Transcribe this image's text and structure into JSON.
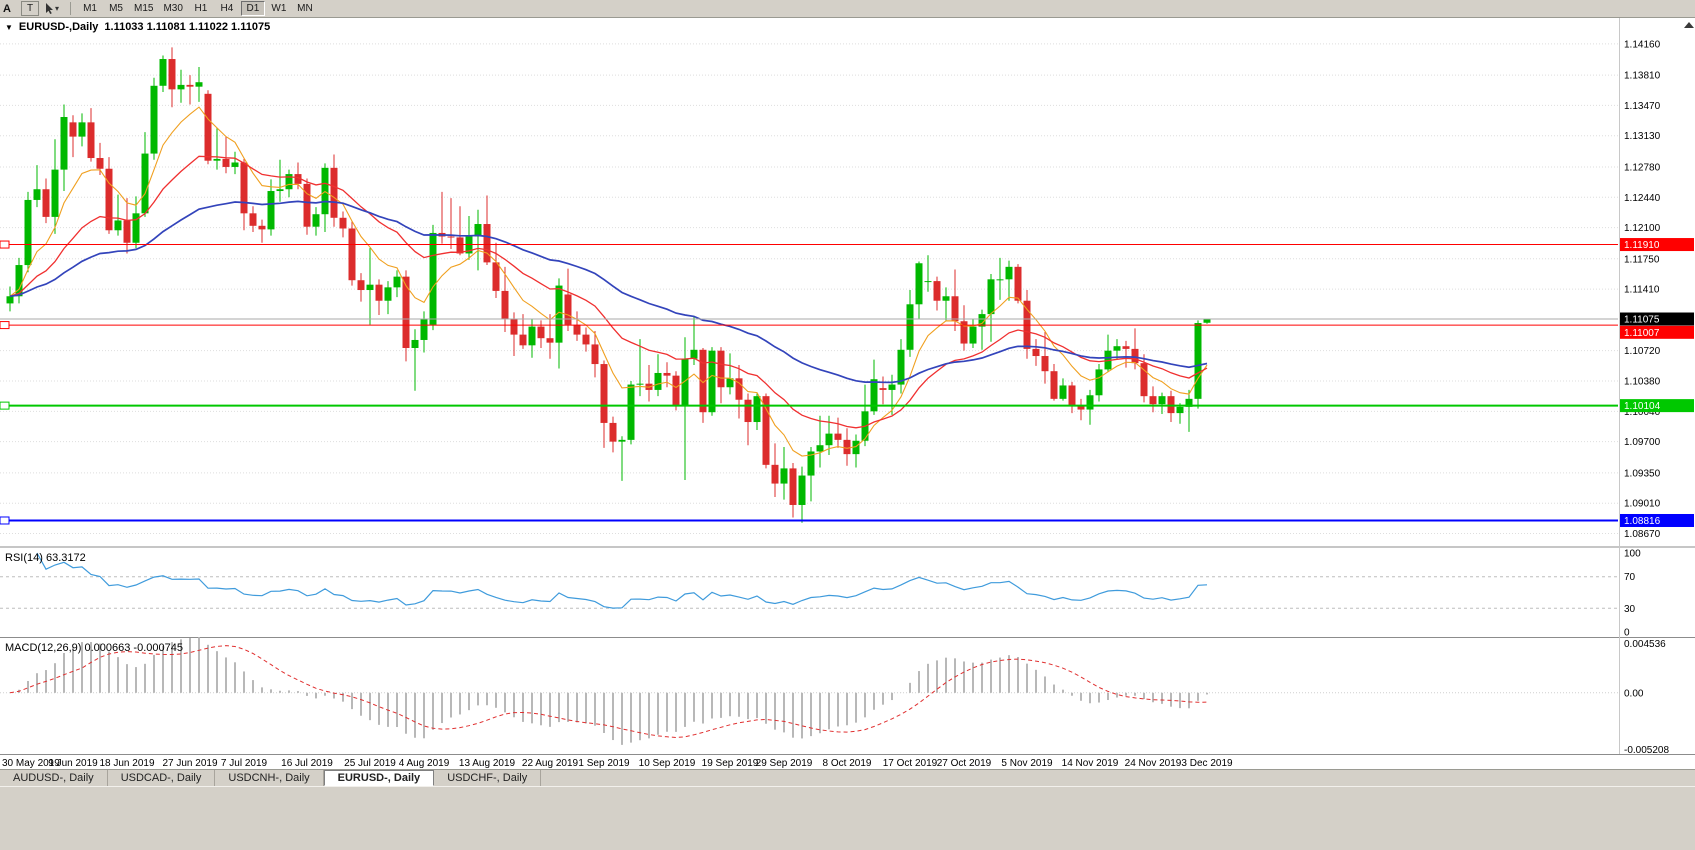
{
  "window": {
    "bg_color": "#d4d0c8"
  },
  "toolbar": {
    "left_label": "A",
    "text_tool_label": "T",
    "timeframes": [
      "M1",
      "M5",
      "M15",
      "M30",
      "H1",
      "H4",
      "D1",
      "W1",
      "MN"
    ],
    "active_timeframe": "D1"
  },
  "chart": {
    "title_symbol": "EURUSD-,Daily",
    "title_ohlc": "1.11033 1.11081 1.11022 1.11075"
  },
  "indicators": {
    "rsi": {
      "title": "RSI(14) 63.3172",
      "period": 14,
      "value": "63.3172",
      "color": "#3f9bdc",
      "level_lines": [
        70,
        30
      ],
      "axis_levels": [
        100,
        70,
        30,
        0
      ]
    },
    "macd": {
      "title": "MACD(12,26,9) 0.000663 -0.000745",
      "fast": 12,
      "slow": 26,
      "signal": 9,
      "values": "0.000663 -0.000745",
      "histogram_color": "#b8b8b8",
      "signal_color": "#e03030",
      "axis_max": 0.004536,
      "axis_min": -0.005208,
      "axis_labels": [
        "0.004536",
        "0.00",
        "-0.005208"
      ]
    }
  },
  "chart_data": {
    "type": "candlestick",
    "symbol": "EURUSD-",
    "timeframe": "Daily",
    "current_bar": {
      "open": 1.11033,
      "high": 1.11081,
      "low": 1.11022,
      "close": 1.11075
    },
    "current_price": {
      "value": 1.11075,
      "label": "1.11075"
    },
    "price_range": {
      "min": 1.0853,
      "max": 1.1445
    },
    "price_axis_ticks": [
      1.1416,
      1.1381,
      1.1347,
      1.1313,
      1.1278,
      1.1244,
      1.121,
      1.1175,
      1.1141,
      1.1072,
      1.1038,
      1.1004,
      1.097,
      1.0935,
      1.0901,
      1.0867
    ],
    "up_color": "#00b800",
    "down_color": "#dc2c2c",
    "horizontal_lines": [
      {
        "price": 1.1191,
        "label": "1.11910",
        "color": "#ff0000",
        "width": 1
      },
      {
        "price": 1.11007,
        "label": "1.11007",
        "color": "#ff0000",
        "width": 1
      },
      {
        "price": 1.10104,
        "label": "1.10104",
        "color": "#00c800",
        "width": 2
      },
      {
        "price": 1.08816,
        "label": "1.08816",
        "color": "#0000ff",
        "width": 2
      }
    ],
    "moving_averages": [
      {
        "name": "fast",
        "period": 8,
        "color": "#f0a020",
        "width": 1.1
      },
      {
        "name": "medium",
        "period": 21,
        "color": "#f03030",
        "width": 1.3
      },
      {
        "name": "slow",
        "period": 48,
        "color": "#3344bb",
        "width": 1.7
      }
    ],
    "date_labels": [
      {
        "index": 0,
        "label": "30 May 2019"
      },
      {
        "index": 7,
        "label": "9 Jun 2019"
      },
      {
        "index": 13,
        "label": "18 Jun 2019"
      },
      {
        "index": 20,
        "label": "27 Jun 2019"
      },
      {
        "index": 26,
        "label": "7 Jul 2019"
      },
      {
        "index": 33,
        "label": "16 Jul 2019"
      },
      {
        "index": 40,
        "label": "25 Jul 2019"
      },
      {
        "index": 46,
        "label": "4 Aug 2019"
      },
      {
        "index": 53,
        "label": "13 Aug 2019"
      },
      {
        "index": 60,
        "label": "22 Aug 2019"
      },
      {
        "index": 66,
        "label": "1 Sep 2019"
      },
      {
        "index": 73,
        "label": "10 Sep 2019"
      },
      {
        "index": 80,
        "label": "19 Sep 2019"
      },
      {
        "index": 86,
        "label": "29 Sep 2019"
      },
      {
        "index": 93,
        "label": "8 Oct 2019"
      },
      {
        "index": 100,
        "label": "17 Oct 2019"
      },
      {
        "index": 106,
        "label": "27 Oct 2019"
      },
      {
        "index": 113,
        "label": "5 Nov 2019"
      },
      {
        "index": 120,
        "label": "14 Nov 2019"
      },
      {
        "index": 127,
        "label": "24 Nov 2019"
      },
      {
        "index": 133,
        "label": "3 Dec 2019"
      }
    ],
    "candles": [
      [
        1.1125,
        1.1144,
        1.1116,
        1.1133
      ],
      [
        1.1133,
        1.1176,
        1.1125,
        1.1168
      ],
      [
        1.1168,
        1.125,
        1.116,
        1.1241
      ],
      [
        1.1241,
        1.128,
        1.1233,
        1.1253
      ],
      [
        1.1253,
        1.1265,
        1.1215,
        1.1222
      ],
      [
        1.1222,
        1.1309,
        1.1203,
        1.1275
      ],
      [
        1.1275,
        1.1348,
        1.1251,
        1.1334
      ],
      [
        1.1328,
        1.1336,
        1.1289,
        1.1312
      ],
      [
        1.1312,
        1.1338,
        1.1301,
        1.1328
      ],
      [
        1.1328,
        1.1344,
        1.1284,
        1.1288
      ],
      [
        1.1288,
        1.1305,
        1.1269,
        1.1276
      ],
      [
        1.1276,
        1.1289,
        1.1203,
        1.1207
      ],
      [
        1.1207,
        1.1247,
        1.1201,
        1.1218
      ],
      [
        1.1218,
        1.1243,
        1.1181,
        1.1193
      ],
      [
        1.1193,
        1.1245,
        1.1187,
        1.1226
      ],
      [
        1.1226,
        1.1317,
        1.1222,
        1.1293
      ],
      [
        1.1293,
        1.1378,
        1.1286,
        1.1369
      ],
      [
        1.1369,
        1.1403,
        1.1362,
        1.1399
      ],
      [
        1.1399,
        1.1412,
        1.1345,
        1.1365
      ],
      [
        1.1365,
        1.1387,
        1.135,
        1.137
      ],
      [
        1.137,
        1.1381,
        1.1348,
        1.1368
      ],
      [
        1.1368,
        1.139,
        1.1351,
        1.1373
      ],
      [
        1.136,
        1.1364,
        1.1281,
        1.1285
      ],
      [
        1.1285,
        1.1322,
        1.1275,
        1.1287
      ],
      [
        1.1287,
        1.1312,
        1.1271,
        1.1278
      ],
      [
        1.1278,
        1.1295,
        1.127,
        1.1283
      ],
      [
        1.1283,
        1.1287,
        1.1207,
        1.1226
      ],
      [
        1.1226,
        1.1234,
        1.1205,
        1.1212
      ],
      [
        1.1212,
        1.1219,
        1.1193,
        1.1208
      ],
      [
        1.1208,
        1.1264,
        1.1201,
        1.1251
      ],
      [
        1.1251,
        1.1286,
        1.1239,
        1.1253
      ],
      [
        1.1253,
        1.1275,
        1.1244,
        1.127
      ],
      [
        1.127,
        1.1283,
        1.1253,
        1.1259
      ],
      [
        1.1259,
        1.1265,
        1.1202,
        1.1211
      ],
      [
        1.1211,
        1.1233,
        1.1201,
        1.1225
      ],
      [
        1.1225,
        1.1282,
        1.1205,
        1.1277
      ],
      [
        1.1277,
        1.1292,
        1.1211,
        1.1221
      ],
      [
        1.1221,
        1.1228,
        1.1199,
        1.1209
      ],
      [
        1.1209,
        1.1217,
        1.1145,
        1.1151
      ],
      [
        1.1151,
        1.1159,
        1.1127,
        1.114
      ],
      [
        1.114,
        1.1187,
        1.1101,
        1.1146
      ],
      [
        1.1146,
        1.1152,
        1.1112,
        1.1128
      ],
      [
        1.1128,
        1.115,
        1.1113,
        1.1143
      ],
      [
        1.1143,
        1.1162,
        1.1132,
        1.1155
      ],
      [
        1.1155,
        1.1162,
        1.106,
        1.1075
      ],
      [
        1.1075,
        1.1096,
        1.1027,
        1.1084
      ],
      [
        1.1084,
        1.1116,
        1.107,
        1.1108
      ],
      [
        1.1101,
        1.1213,
        1.1095,
        1.1204
      ],
      [
        1.1204,
        1.125,
        1.1192,
        1.12
      ],
      [
        1.12,
        1.1243,
        1.1186,
        1.1199
      ],
      [
        1.1199,
        1.1234,
        1.1179,
        1.1181
      ],
      [
        1.1181,
        1.1223,
        1.1174,
        1.12
      ],
      [
        1.12,
        1.123,
        1.1162,
        1.1214
      ],
      [
        1.1214,
        1.1246,
        1.1168,
        1.1171
      ],
      [
        1.1171,
        1.1193,
        1.1131,
        1.1139
      ],
      [
        1.1139,
        1.1166,
        1.1093,
        1.1108
      ],
      [
        1.1108,
        1.1115,
        1.1066,
        1.109
      ],
      [
        1.109,
        1.1113,
        1.1074,
        1.1078
      ],
      [
        1.1078,
        1.1107,
        1.1064,
        1.1099
      ],
      [
        1.1099,
        1.1106,
        1.1075,
        1.1086
      ],
      [
        1.1086,
        1.1113,
        1.1063,
        1.1081
      ],
      [
        1.1081,
        1.1153,
        1.1052,
        1.1145
      ],
      [
        1.1135,
        1.1164,
        1.1094,
        1.1101
      ],
      [
        1.1101,
        1.1116,
        1.1083,
        1.109
      ],
      [
        1.109,
        1.1098,
        1.1071,
        1.1079
      ],
      [
        1.1079,
        1.1094,
        1.1042,
        1.1057
      ],
      [
        1.1057,
        1.1061,
        1.0963,
        1.0991
      ],
      [
        1.0991,
        1.0998,
        1.0958,
        1.097
      ],
      [
        1.097,
        1.0976,
        1.0926,
        1.0972
      ],
      [
        1.0972,
        1.1038,
        1.0967,
        1.1034
      ],
      [
        1.1034,
        1.1085,
        1.1021,
        1.1035
      ],
      [
        1.1035,
        1.1056,
        1.1015,
        1.1028
      ],
      [
        1.1028,
        1.1068,
        1.1021,
        1.1047
      ],
      [
        1.1047,
        1.1059,
        1.1031,
        1.1044
      ],
      [
        1.1044,
        1.1049,
        1.1005,
        1.101
      ],
      [
        1.101,
        1.1087,
        1.0927,
        1.1063
      ],
      [
        1.1063,
        1.111,
        1.1056,
        1.1073
      ],
      [
        1.1073,
        1.1075,
        1.0991,
        1.1003
      ],
      [
        1.1003,
        1.1076,
        1.0999,
        1.1072
      ],
      [
        1.1072,
        1.1076,
        1.1013,
        1.1031
      ],
      [
        1.1031,
        1.1069,
        1.1023,
        1.1041
      ],
      [
        1.1041,
        1.1056,
        1.0996,
        1.1017
      ],
      [
        1.1017,
        1.1024,
        1.0966,
        1.0992
      ],
      [
        1.0992,
        1.1024,
        1.0983,
        1.1021
      ],
      [
        1.1021,
        1.1024,
        1.094,
        1.0944
      ],
      [
        1.0944,
        1.0968,
        1.0908,
        1.0923
      ],
      [
        1.0923,
        1.0964,
        1.0905,
        1.094
      ],
      [
        1.094,
        1.0946,
        1.0885,
        1.0899
      ],
      [
        1.0899,
        1.0942,
        1.0879,
        1.0932
      ],
      [
        1.0932,
        1.0964,
        1.0903,
        1.0959
      ],
      [
        1.0959,
        1.0999,
        1.0941,
        1.0966
      ],
      [
        1.0966,
        1.0999,
        1.0955,
        1.0979
      ],
      [
        1.0979,
        1.0997,
        1.0963,
        1.0972
      ],
      [
        1.0972,
        1.0985,
        1.0943,
        1.0956
      ],
      [
        1.0956,
        1.0978,
        1.0941,
        1.0971
      ],
      [
        1.0971,
        1.1034,
        1.0965,
        1.1004
      ],
      [
        1.1004,
        1.1062,
        1.1,
        1.104
      ],
      [
        1.103,
        1.1043,
        1.1012,
        1.1028
      ],
      [
        1.1028,
        1.1045,
        1.1,
        1.1034
      ],
      [
        1.1034,
        1.1085,
        1.1024,
        1.1073
      ],
      [
        1.1073,
        1.114,
        1.1065,
        1.1124
      ],
      [
        1.1124,
        1.1172,
        1.1108,
        1.117
      ],
      [
        1.115,
        1.1179,
        1.1138,
        1.115
      ],
      [
        1.115,
        1.1155,
        1.1117,
        1.1128
      ],
      [
        1.1128,
        1.1143,
        1.1106,
        1.1133
      ],
      [
        1.1133,
        1.1163,
        1.1094,
        1.1105
      ],
      [
        1.1105,
        1.1123,
        1.1072,
        1.108
      ],
      [
        1.108,
        1.1108,
        1.1075,
        1.1099
      ],
      [
        1.1099,
        1.1118,
        1.1073,
        1.1113
      ],
      [
        1.1113,
        1.1158,
        1.1082,
        1.1152
      ],
      [
        1.1152,
        1.1176,
        1.1129,
        1.1152
      ],
      [
        1.1152,
        1.1173,
        1.1128,
        1.1166
      ],
      [
        1.1166,
        1.1169,
        1.1125,
        1.1128
      ],
      [
        1.1128,
        1.114,
        1.1063,
        1.1074
      ],
      [
        1.1074,
        1.1085,
        1.1055,
        1.1066
      ],
      [
        1.1066,
        1.1093,
        1.1035,
        1.1049
      ],
      [
        1.1049,
        1.1057,
        1.1016,
        1.1018
      ],
      [
        1.1018,
        1.1041,
        1.1016,
        1.1033
      ],
      [
        1.1033,
        1.1037,
        1.1002,
        1.101
      ],
      [
        1.101,
        1.1018,
        1.0994,
        1.1006
      ],
      [
        1.1006,
        1.1028,
        1.0989,
        1.1022
      ],
      [
        1.1022,
        1.1057,
        1.1015,
        1.1051
      ],
      [
        1.1051,
        1.109,
        1.1048,
        1.1072
      ],
      [
        1.1072,
        1.1085,
        1.1062,
        1.1077
      ],
      [
        1.1077,
        1.1083,
        1.1053,
        1.1074
      ],
      [
        1.1074,
        1.1097,
        1.1051,
        1.1058
      ],
      [
        1.1058,
        1.1068,
        1.1014,
        1.1021
      ],
      [
        1.1021,
        1.1032,
        1.1003,
        1.1012
      ],
      [
        1.1012,
        1.1025,
        1.1001,
        1.1021
      ],
      [
        1.1021,
        1.1027,
        1.0992,
        1.1002
      ],
      [
        1.1002,
        1.1013,
        1.099,
        1.1009
      ],
      [
        1.1009,
        1.1028,
        1.0981,
        1.1018
      ],
      [
        1.1018,
        1.1106,
        1.1007,
        1.1103
      ],
      [
        1.11033,
        1.11081,
        1.11022,
        1.11075
      ]
    ]
  },
  "tabs": [
    {
      "label": "AUDUSD-, Daily",
      "active": false
    },
    {
      "label": "USDCAD-, Daily",
      "active": false
    },
    {
      "label": "USDCNH-, Daily",
      "active": false
    },
    {
      "label": "EURUSD-, Daily",
      "active": true
    },
    {
      "label": "USDCHF-, Daily",
      "active": false
    }
  ]
}
